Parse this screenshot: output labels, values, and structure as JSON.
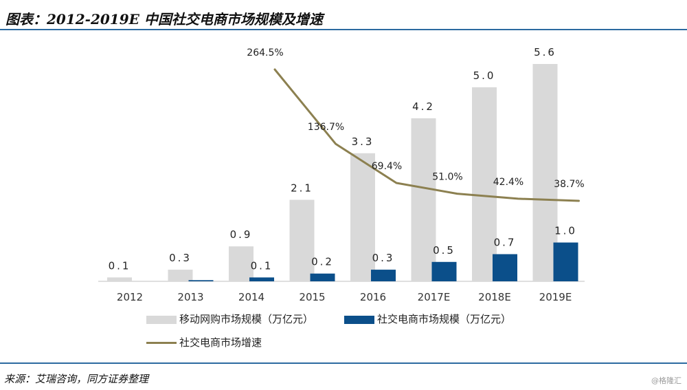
{
  "header": {
    "title": "图表：2012-2019E  中国社交电商市场规模及增速"
  },
  "footer": {
    "source": "来源：艾瑞咨询，同方证券整理",
    "watermark": "@格隆汇"
  },
  "chart_data": {
    "type": "bar",
    "title": "图表：2012-2019E  中国社交电商市场规模及增速",
    "categories": [
      "2012",
      "2013",
      "2014",
      "2015",
      "2016",
      "2017E",
      "2018E",
      "2019E"
    ],
    "series": [
      {
        "name": "移动网购市场规模（万亿元）",
        "type": "bar",
        "color": "#d9d9d9",
        "values": [
          0.1,
          0.3,
          0.9,
          2.1,
          3.3,
          4.2,
          5.0,
          5.6
        ],
        "labels": [
          "0.1",
          "0.3",
          "0.9",
          "2.1",
          "3.3",
          "4.2",
          "5.0",
          "5.6"
        ]
      },
      {
        "name": "社交电商市场规模（万亿元）",
        "type": "bar",
        "color": "#0b4f8a",
        "values": [
          null,
          0.03,
          0.1,
          0.2,
          0.3,
          0.5,
          0.7,
          1.0
        ],
        "labels": [
          "",
          "",
          "0.1",
          "0.2",
          "0.3",
          "0.5",
          "0.7",
          "1.0"
        ]
      },
      {
        "name": "社交电商市场增速",
        "type": "line",
        "color": "#8c8050",
        "values": [
          null,
          null,
          264.5,
          136.7,
          69.4,
          51.0,
          42.4,
          38.7
        ],
        "labels": [
          "",
          "",
          "264.5%",
          "136.7%",
          "69.4%",
          "51.0%",
          "42.4%",
          "38.7%"
        ]
      }
    ],
    "ylim_bar": [
      0,
      5.6
    ],
    "ylim_line": [
      38.7,
      264.5
    ],
    "grid": false,
    "legend_position": "bottom"
  }
}
